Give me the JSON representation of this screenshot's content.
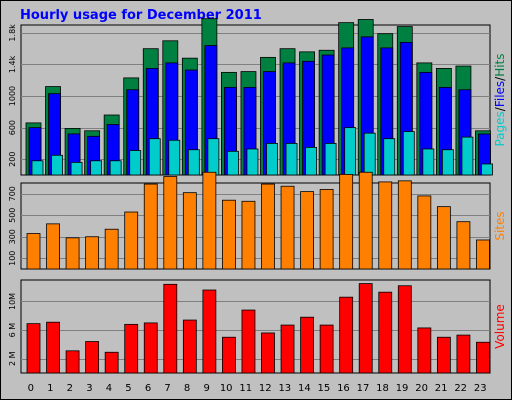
{
  "chart_data": {
    "type": "bar",
    "title": "Hourly usage for December 2011",
    "categories": [
      "0",
      "1",
      "2",
      "3",
      "4",
      "5",
      "6",
      "7",
      "8",
      "9",
      "10",
      "11",
      "12",
      "13",
      "14",
      "15",
      "16",
      "17",
      "18",
      "19",
      "20",
      "21",
      "22",
      "23"
    ],
    "panels": [
      {
        "label_parts": [
          {
            "text": "Pages",
            "color": "#00cccc"
          },
          {
            "text": "/",
            "color": "#000000"
          },
          {
            "text": "Files",
            "color": "#0000ff"
          },
          {
            "text": "/",
            "color": "#000000"
          },
          {
            "text": "Hits",
            "color": "#008040"
          }
        ],
        "ylim": [
          0,
          1900
        ],
        "yticks": [
          200,
          600,
          1000,
          1400,
          1800
        ],
        "ytick_labels": [
          "200",
          "600",
          "1000",
          "1.4k",
          "1.8k"
        ],
        "series": [
          {
            "name": "Hits",
            "color": "#008040",
            "values": [
              660,
              1120,
              590,
              560,
              760,
              1230,
              1600,
              1700,
              1480,
              1980,
              1300,
              1310,
              1490,
              1600,
              1560,
              1580,
              1930,
              1970,
              1790,
              1880,
              1420,
              1350,
              1380,
              560
            ]
          },
          {
            "name": "Files",
            "color": "#0000ff",
            "values": [
              600,
              1030,
              520,
              490,
              640,
              1080,
              1350,
              1420,
              1330,
              1640,
              1110,
              1110,
              1310,
              1420,
              1440,
              1520,
              1610,
              1750,
              1610,
              1680,
              1300,
              1110,
              1080,
              520
            ]
          },
          {
            "name": "Pages",
            "color": "#00cccc",
            "values": [
              180,
              250,
              160,
              180,
              180,
              310,
              460,
              440,
              320,
              460,
              300,
              330,
              400,
              400,
              350,
              400,
              600,
              530,
              460,
              550,
              330,
              320,
              480,
              140
            ]
          }
        ]
      },
      {
        "label_parts": [
          {
            "text": "Sites",
            "color": "#ff8000"
          }
        ],
        "ylim": [
          0,
          800
        ],
        "yticks": [
          100,
          300,
          500,
          700
        ],
        "ytick_labels": [
          "100",
          "300",
          "500",
          "700"
        ],
        "series": [
          {
            "name": "Sites",
            "color": "#ff8000",
            "values": [
              330,
              420,
              290,
              300,
              370,
              530,
              790,
              860,
              710,
              900,
              640,
              630,
              790,
              770,
              720,
              740,
              880,
              900,
              810,
              820,
              680,
              580,
              440,
              270
            ]
          }
        ]
      },
      {
        "label_parts": [
          {
            "text": "Volume",
            "color": "#ff0000"
          }
        ],
        "ylim": [
          0,
          13
        ],
        "yticks": [
          2,
          6,
          10
        ],
        "ytick_labels": [
          "2 M",
          "6 M",
          "10M"
        ],
        "series": [
          {
            "name": "Volume",
            "color": "#ff0000",
            "values": [
              6.9,
              7.1,
              3.1,
              4.4,
              2.9,
              6.8,
              7.0,
              12.4,
              7.4,
              11.6,
              5.0,
              8.8,
              5.6,
              6.7,
              7.8,
              6.7,
              10.6,
              12.5,
              11.3,
              12.2,
              6.3,
              5.0,
              5.3,
              4.3
            ]
          }
        ]
      }
    ]
  }
}
